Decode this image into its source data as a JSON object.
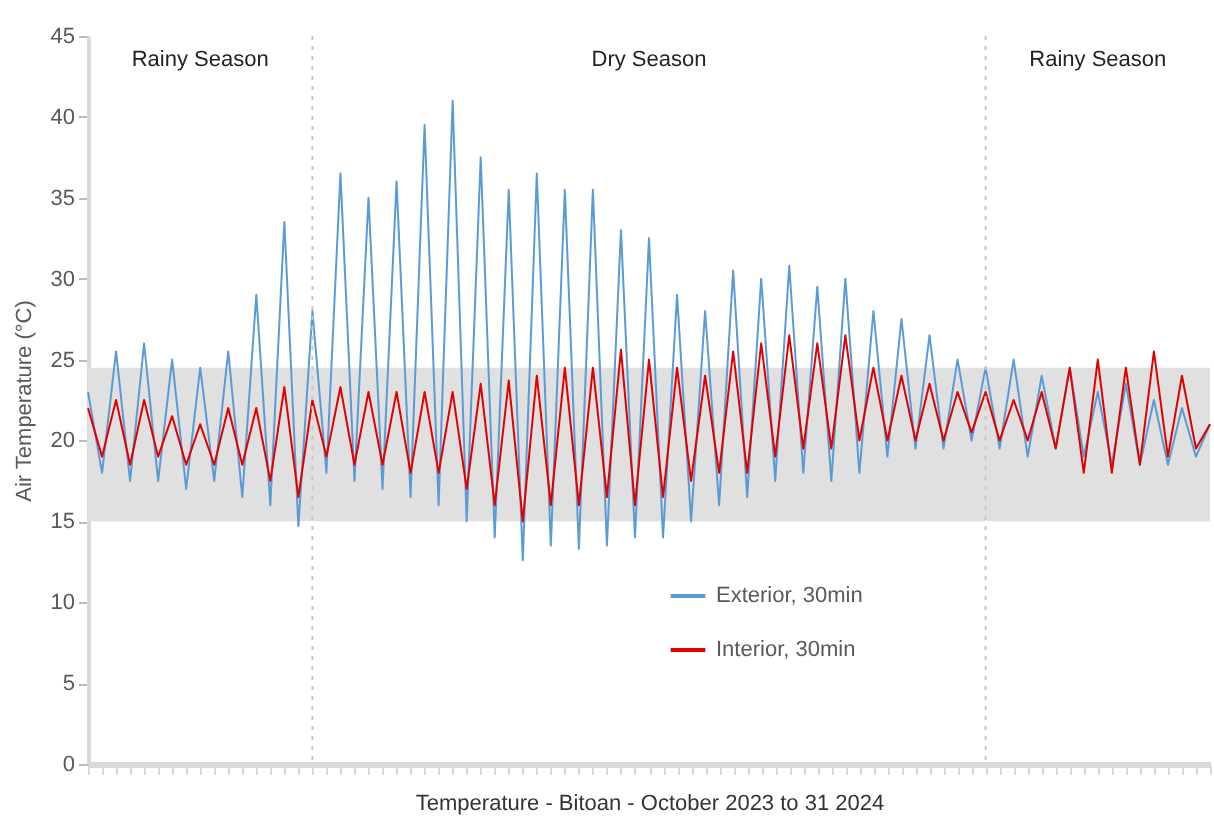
{
  "chart_data": {
    "type": "line",
    "xlabel": "Temperature - Bitoan - October 2023 to 31 2024",
    "ylabel": "Air Temperature (°C)",
    "categories": [
      null,
      null,
      null,
      null,
      null,
      null,
      null,
      null,
      null,
      null,
      null,
      null,
      null,
      null,
      null,
      null,
      null,
      null,
      null,
      null,
      null,
      null,
      null,
      null,
      null,
      null,
      null,
      null,
      null,
      null,
      null,
      null,
      null,
      null,
      null,
      null,
      null,
      null,
      null,
      null,
      null,
      null,
      null,
      null,
      null,
      null,
      null,
      null,
      null,
      null,
      null,
      null,
      null,
      null,
      null,
      null,
      null,
      null,
      null,
      null,
      null,
      null,
      null,
      null,
      null,
      null,
      null,
      null,
      null,
      null,
      null,
      null,
      null,
      null,
      null,
      null,
      null,
      null,
      null,
      null,
      null
    ],
    "series": [
      {
        "name": "Exterior, 30min",
        "color": "#5b9bd5",
        "values": [
          23,
          18,
          25.5,
          17.5,
          26,
          17.5,
          25,
          17,
          24.5,
          17.5,
          25.5,
          16.5,
          29,
          16,
          33.5,
          14.7,
          28,
          18,
          36.5,
          17.5,
          35,
          17,
          36,
          16.5,
          39.5,
          16,
          41,
          15,
          37.5,
          14,
          35.5,
          12.6,
          36.5,
          13.5,
          35.5,
          13.3,
          35.5,
          13.5,
          33,
          14,
          32.5,
          14,
          29,
          15,
          28,
          16,
          30.5,
          16.5,
          30,
          17.5,
          30.8,
          18,
          29.5,
          17.5,
          30,
          18,
          28,
          19,
          27.5,
          19.5,
          26.5,
          19.5,
          25,
          20,
          24.5,
          19.5,
          25,
          19,
          24,
          19.5,
          24.5,
          19,
          23,
          18.5,
          23.5,
          18.5,
          22.5,
          18.5,
          22,
          19,
          21
        ]
      },
      {
        "name": "Interior, 30min",
        "color": "#e00000",
        "values": [
          22,
          19,
          22.5,
          18.5,
          22.5,
          19,
          21.5,
          18.5,
          21,
          18.5,
          22,
          18.5,
          22,
          17.5,
          23.3,
          16.5,
          22.5,
          19,
          23.3,
          18.5,
          23,
          18.5,
          23,
          18,
          23,
          18,
          23,
          17,
          23.5,
          16,
          23.7,
          15,
          24,
          16,
          24.5,
          16,
          24.5,
          16.5,
          25.6,
          16,
          25,
          16.5,
          24.5,
          17.5,
          24,
          18,
          25.5,
          18,
          26,
          19,
          26.5,
          19.5,
          26,
          19.5,
          26.5,
          20,
          24.5,
          20,
          24,
          20,
          23.5,
          20,
          23,
          20.5,
          23,
          20,
          22.5,
          20,
          23,
          19.5,
          24.5,
          18,
          25,
          18,
          24.5,
          18.5,
          25.5,
          19,
          24,
          19.5,
          21
        ]
      }
    ],
    "ylim": [
      0,
      45
    ],
    "yticks": [
      0,
      5,
      10,
      15,
      20,
      25,
      30,
      35,
      40,
      45
    ],
    "tick_labels": "y",
    "grid": false,
    "legend": "bottom",
    "line_style": "solid",
    "bands": [
      {
        "axis": "y",
        "from": 15,
        "to": 24.5,
        "color": "#e0e0e0"
      }
    ],
    "annotations": [
      "Rainy Season",
      "Dry Season",
      "Rainy Season"
    ]
  }
}
